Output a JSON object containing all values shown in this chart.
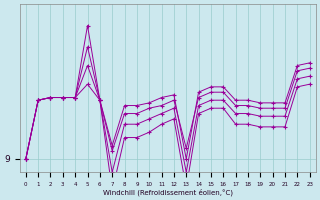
{
  "background_color": "#cce8ee",
  "grid_color": "#99cccc",
  "line_color": "#990099",
  "marker_color": "#990099",
  "xlabel": "Windchill (Refroidissement éolien,°C)",
  "ylabel_tick": "9",
  "x_ticks": [
    0,
    1,
    2,
    3,
    4,
    5,
    6,
    7,
    8,
    9,
    10,
    11,
    12,
    13,
    14,
    15,
    16,
    17,
    18,
    19,
    20,
    21,
    22,
    23
  ],
  "series": [
    [
      9.0,
      11.2,
      11.3,
      11.3,
      11.3,
      14.0,
      11.2,
      9.5,
      11.0,
      11.0,
      11.1,
      11.3,
      11.4,
      9.0,
      11.5,
      11.7,
      11.7,
      11.2,
      11.2,
      11.1,
      11.1,
      11.1,
      12.5,
      12.6
    ],
    [
      9.0,
      11.2,
      11.3,
      11.3,
      11.3,
      13.2,
      11.2,
      9.3,
      10.7,
      10.7,
      10.9,
      11.0,
      11.2,
      9.4,
      11.3,
      11.5,
      11.5,
      11.0,
      11.0,
      10.9,
      10.9,
      10.9,
      12.3,
      12.4
    ],
    [
      9.0,
      11.2,
      11.3,
      11.3,
      11.3,
      12.5,
      11.2,
      8.5,
      10.3,
      10.3,
      10.5,
      10.7,
      10.9,
      8.5,
      11.0,
      11.2,
      11.2,
      10.7,
      10.7,
      10.6,
      10.6,
      10.6,
      12.0,
      12.1
    ],
    [
      9.0,
      11.2,
      11.3,
      11.3,
      11.3,
      11.8,
      11.2,
      7.8,
      9.8,
      9.8,
      10.0,
      10.3,
      10.5,
      7.9,
      10.7,
      10.9,
      10.9,
      10.3,
      10.3,
      10.2,
      10.2,
      10.2,
      11.7,
      11.8
    ]
  ],
  "ylim": [
    8.5,
    14.8
  ],
  "ytick_val": 9.0,
  "figsize": [
    3.2,
    2.0
  ],
  "dpi": 100
}
